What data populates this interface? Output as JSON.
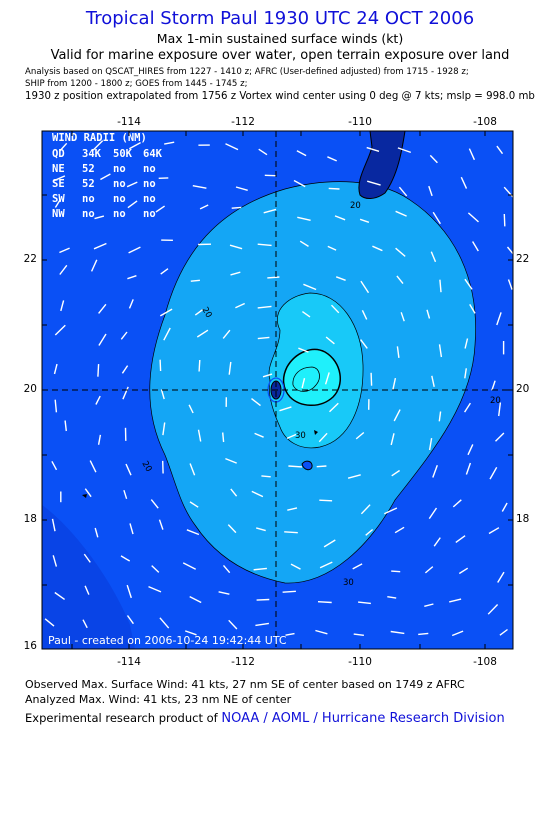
{
  "header": {
    "title": "Tropical Storm Paul 1930 UTC 24 OCT 2006",
    "subtitle": "Max 1-min sustained surface winds (kt)",
    "validity": "Valid for marine exposure over water, open terrain exposure over land",
    "analysis_line1": "Analysis based on  QSCAT_HIRES from 1227 - 1410 z;  AFRC (User-defined adjusted) from 1715 - 1928 z;",
    "analysis_line2": "SHIP from 1200 - 1800 z;  GOES from 1445 - 1745 z;",
    "position_line": "1930 z position extrapolated from 1756 z Vortex wind center using 0 deg @ 7 kts; mslp = 998.0 mb"
  },
  "map": {
    "lon_ticks": [
      "-114",
      "-112",
      "-110",
      "-108"
    ],
    "lat_ticks": [
      "22",
      "20",
      "18",
      "16"
    ],
    "contour_labels": [
      "20",
      "20",
      "20",
      "20",
      "30",
      "30"
    ],
    "credit": "Paul - created on 2006-10-24  19:42:44 UTC",
    "colors": {
      "band_lt20": "#0a50f5",
      "band_20_30": "#14a6f5",
      "band_30_40": "#18c9f8",
      "band_ge40": "#1ff0fb",
      "land": "#0828a0",
      "vectors": "#ffffff",
      "frame": "#000000"
    },
    "wind_radii": {
      "title": "WIND RADII (NM)",
      "header": [
        "QD",
        "34K",
        "50K",
        "64K"
      ],
      "rows": [
        [
          "NE",
          "52",
          "no",
          "no"
        ],
        [
          "SE",
          "52",
          "no",
          "no"
        ],
        [
          "SW",
          "no",
          "no",
          "no"
        ],
        [
          "NW",
          "no",
          "no",
          "no"
        ]
      ]
    }
  },
  "footer": {
    "observed": "Observed Max. Surface Wind: 41 kts, 27 nm SE of center based on 1749 z AFRC",
    "analyzed": "Analyzed Max. Wind: 41 kts, 23 nm NE of center",
    "credit_prefix": "Experimental research product of ",
    "credit_org": "NOAA / AOML / Hurricane Research Division"
  }
}
